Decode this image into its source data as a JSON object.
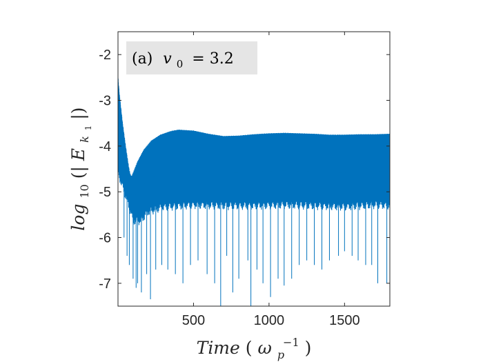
{
  "chart_data": {
    "type": "line",
    "title": "",
    "annotation": {
      "panel": "(a)",
      "var": "v",
      "sub": "0",
      "value": "= 3.2"
    },
    "xlabel": {
      "main": "Time",
      "open": "(",
      "omega": "ω",
      "sub": "p",
      "sup": "−1",
      "close": ")"
    },
    "ylabel": {
      "main": "log",
      "sub": "10",
      "open": "(|",
      "E": "E",
      "ksub": "k",
      "ksub2": "1",
      "close": "|)"
    },
    "xlim": [
      0,
      1800
    ],
    "ylim": [
      -7.5,
      -1.5
    ],
    "xticks": [
      500,
      1000,
      1500
    ],
    "yticks": [
      -2,
      -3,
      -4,
      -5,
      -6,
      -7
    ],
    "series": [
      {
        "color": "#0072BD",
        "upper_envelope": {
          "x": [
            0,
            10,
            30,
            50,
            70,
            80,
            90,
            100,
            130,
            170,
            220,
            280,
            350,
            400,
            450,
            500,
            600,
            700,
            800,
            900,
            1000,
            1100,
            1200,
            1300,
            1400,
            1500,
            1600,
            1700,
            1800
          ],
          "y": [
            -2.5,
            -2.9,
            -3.5,
            -4.0,
            -4.45,
            -4.62,
            -4.68,
            -4.6,
            -4.35,
            -4.1,
            -3.9,
            -3.77,
            -3.69,
            -3.66,
            -3.67,
            -3.68,
            -3.75,
            -3.8,
            -3.79,
            -3.76,
            -3.74,
            -3.73,
            -3.74,
            -3.75,
            -3.77,
            -3.77,
            -3.76,
            -3.76,
            -3.75
          ]
        },
        "lower_envelope": {
          "x": [
            0,
            20,
            40,
            60,
            80,
            100,
            150,
            200,
            300,
            500,
            700,
            900,
            1100,
            1300,
            1500,
            1700,
            1800
          ],
          "y": [
            -4.5,
            -4.7,
            -4.9,
            -5.1,
            -5.3,
            -5.55,
            -5.55,
            -5.35,
            -5.25,
            -5.2,
            -5.22,
            -5.22,
            -5.2,
            -5.22,
            -5.24,
            -5.2,
            -5.22
          ]
        },
        "dips_x": [
          40,
          60,
          75,
          100,
          120,
          130,
          155,
          190,
          215,
          250,
          290,
          330,
          380,
          430,
          480,
          530,
          590,
          640,
          680,
          720,
          760,
          800,
          860,
          880,
          920,
          960,
          1010,
          1060,
          1100,
          1150,
          1200,
          1250,
          1300,
          1350,
          1400,
          1460,
          1500,
          1550,
          1590,
          1640,
          1680,
          1720,
          1780
        ],
        "dips_y": [
          -6.0,
          -6.4,
          -6.6,
          -6.9,
          -7.1,
          -7.0,
          -7.2,
          -6.8,
          -7.35,
          -6.7,
          -6.6,
          -6.7,
          -6.8,
          -7.0,
          -6.6,
          -6.5,
          -6.8,
          -7.0,
          -7.5,
          -6.4,
          -7.2,
          -6.9,
          -6.5,
          -7.5,
          -6.7,
          -7.0,
          -7.3,
          -6.9,
          -7.05,
          -6.9,
          -6.6,
          -6.5,
          -6.6,
          -6.7,
          -6.5,
          -6.4,
          -6.3,
          -6.4,
          -6.5,
          -6.6,
          -6.6,
          -7.0,
          -7.0
        ]
      }
    ]
  }
}
